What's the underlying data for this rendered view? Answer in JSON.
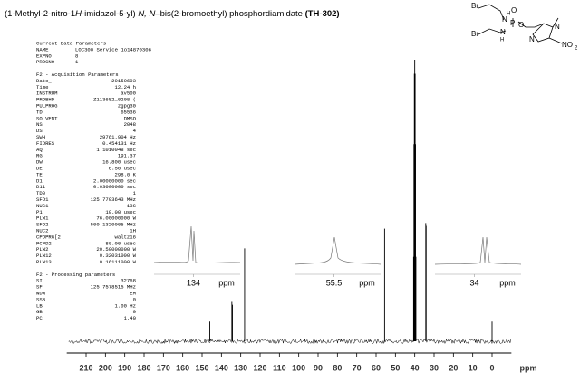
{
  "title_parts": [
    "(1-Methyl-2-nitro-1",
    "H",
    "-imidazol-5-yl) ",
    "N, N",
    "–bis(2-bromoethyl) phosphordiamidate ",
    "(TH-302)"
  ],
  "structure_labels": [
    "Br",
    "Br",
    "N",
    "H",
    "N",
    "H",
    "P",
    "O",
    "O",
    "N",
    "N",
    "NO",
    "2"
  ],
  "parameters": [
    {
      "heading": "Current Data Parameters",
      "rows": [
        [
          "NAME",
          "LOC300 Service 1o14870306"
        ],
        [
          "EXPNO",
          "8"
        ],
        [
          "PROCNO",
          "1"
        ]
      ]
    },
    {
      "heading": "F2 - Acquisition Parameters",
      "rows": [
        [
          "Date_",
          "20150603"
        ],
        [
          "Time",
          "12.24 h"
        ],
        [
          "INSTRUM",
          "av500"
        ],
        [
          "PROBHD",
          "Z113652_0208 ("
        ],
        [
          "PULPROG",
          "zgpg30"
        ],
        [
          "TD",
          "65536"
        ],
        [
          "SOLVENT",
          "DMSO"
        ],
        [
          "NS",
          "2048"
        ],
        [
          "DS",
          "4"
        ],
        [
          "SWH",
          "29761.904 Hz"
        ],
        [
          "FIDRES",
          "0.454131 Hz"
        ],
        [
          "AQ",
          "1.1010048 sec"
        ],
        [
          "RG",
          "191.37"
        ],
        [
          "DW",
          "16.800 usec"
        ],
        [
          "DE",
          "6.50 usec"
        ],
        [
          "TE",
          "298.0 K"
        ],
        [
          "D1",
          "2.00000000 sec"
        ],
        [
          "D11",
          "0.03000000 sec"
        ],
        [
          "TD0",
          "1"
        ],
        [
          "SFO1",
          "125.7703643 MHz"
        ],
        [
          "NUC1",
          "13C"
        ],
        [
          "P1",
          "10.00 usec"
        ],
        [
          "PLW1",
          "76.00000000 W"
        ],
        [
          "SFO2",
          "500.1320005 MHz"
        ],
        [
          "NUC2",
          "1H"
        ],
        [
          "CPDPRG[2",
          "waltz16"
        ],
        [
          "PCPD2",
          "80.00 usec"
        ],
        [
          "PLW2",
          "20.50000000 W"
        ],
        [
          "PLW12",
          "0.32031000 W"
        ],
        [
          "PLW13",
          "0.16111000 W"
        ]
      ]
    },
    {
      "heading": "F2 - Processing parameters",
      "rows": [
        [
          "SI",
          "32768"
        ],
        [
          "SF",
          "125.7578515 MHz"
        ],
        [
          "WDW",
          "EM"
        ],
        [
          "SSB",
          "0"
        ],
        [
          "LB",
          "1.00 Hz"
        ],
        [
          "GB",
          "0"
        ],
        [
          "PC",
          "1.40"
        ]
      ]
    }
  ],
  "chart_data": {
    "type": "spectrum",
    "xlabel": "ppm",
    "xlim": [
      220,
      -10
    ],
    "xticks": [
      210,
      200,
      190,
      180,
      170,
      160,
      150,
      140,
      130,
      120,
      110,
      100,
      90,
      80,
      70,
      60,
      50,
      40,
      30,
      20,
      10,
      0
    ],
    "ylim": [
      0,
      100
    ],
    "color": "#000000",
    "series": [
      {
        "x": [
          146,
          134.6,
          134.3,
          128,
          55.6,
          40.6,
          40.4,
          40.2,
          40.0,
          39.8,
          39.6,
          39.4,
          34.3,
          34.1,
          0
        ],
        "values": [
          7,
          14,
          13,
          33,
          40,
          30,
          70,
          95,
          100,
          95,
          70,
          30,
          42,
          41,
          7
        ]
      }
    ],
    "insets": [
      {
        "xticks": [
          134
        ],
        "xlabel": "ppm"
      },
      {
        "xticks": [
          55.5
        ],
        "xlabel": "ppm"
      },
      {
        "xticks": [
          34
        ],
        "xlabel": "ppm"
      }
    ]
  }
}
